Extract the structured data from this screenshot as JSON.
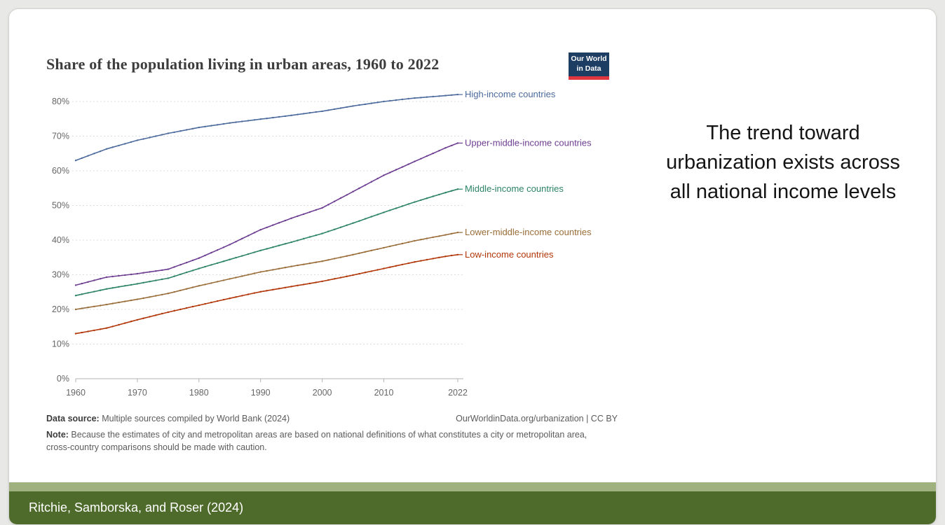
{
  "slide": {
    "headline": "The trend toward urbanization exists across all national income levels",
    "footer": {
      "citation": "Ritchie, Samborska, and Roser (2024)",
      "bar_color": "#4e6b2b",
      "strip_color": "#9fb17e"
    }
  },
  "chart": {
    "title": "Share of the population living in urban areas, 1960 to 2022",
    "logo": {
      "line1": "Our World",
      "line2": "in Data",
      "bg_color": "#1d3d63",
      "accent_color": "#e0373f"
    },
    "source_label": "Data source:",
    "source_text": " Multiple sources compiled by World Bank (2024)",
    "attribution": "OurWorldinData.org/urbanization | CC BY",
    "note_label": "Note:",
    "note_text": " Because the estimates of city and metropolitan areas are based on national definitions of what constitutes a city or metropolitan area, cross-country comparisons should be made with caution."
  },
  "chart_data": {
    "type": "line",
    "title": "Share of the population living in urban areas, 1960 to 2022",
    "xlabel": "",
    "ylabel": "",
    "xlim": [
      1960,
      2022
    ],
    "ylim": [
      0,
      80
    ],
    "yticks": [
      0,
      10,
      20,
      30,
      40,
      50,
      60,
      70,
      80
    ],
    "ytick_suffix": "%",
    "xticks": [
      1960,
      1970,
      1980,
      1990,
      2000,
      2010,
      2022
    ],
    "grid": "horizontal-dashed",
    "legend_position": "end-of-line",
    "x": [
      1960,
      1965,
      1970,
      1975,
      1980,
      1985,
      1990,
      1995,
      2000,
      2005,
      2010,
      2015,
      2020,
      2022
    ],
    "series": [
      {
        "name": "High-income countries",
        "color": "#4c6a9c",
        "values": [
          63.0,
          66.3,
          68.8,
          70.8,
          72.5,
          73.8,
          74.9,
          76.0,
          77.2,
          78.7,
          80.0,
          81.0,
          81.7,
          82.0
        ]
      },
      {
        "name": "Upper-middle-income countries",
        "color": "#6d3e91",
        "values": [
          27.0,
          29.3,
          30.3,
          31.6,
          34.8,
          38.7,
          43.0,
          46.3,
          49.3,
          54.0,
          58.7,
          62.7,
          66.6,
          68.0
        ]
      },
      {
        "name": "Middle-income countries",
        "color": "#2c8465",
        "values": [
          24.0,
          25.9,
          27.4,
          29.0,
          31.8,
          34.4,
          37.0,
          39.4,
          41.9,
          44.9,
          48.0,
          51.0,
          53.7,
          54.7
        ]
      },
      {
        "name": "Lower-middle-income countries",
        "color": "#996d39",
        "values": [
          20.0,
          21.4,
          22.9,
          24.6,
          26.8,
          28.8,
          30.8,
          32.4,
          33.9,
          35.8,
          37.8,
          39.8,
          41.5,
          42.2
        ]
      },
      {
        "name": "Low-income countries",
        "color": "#b13507",
        "values": [
          13.0,
          14.6,
          17.0,
          19.2,
          21.2,
          23.2,
          25.1,
          26.6,
          28.1,
          29.9,
          31.8,
          33.7,
          35.3,
          35.8
        ]
      }
    ]
  }
}
